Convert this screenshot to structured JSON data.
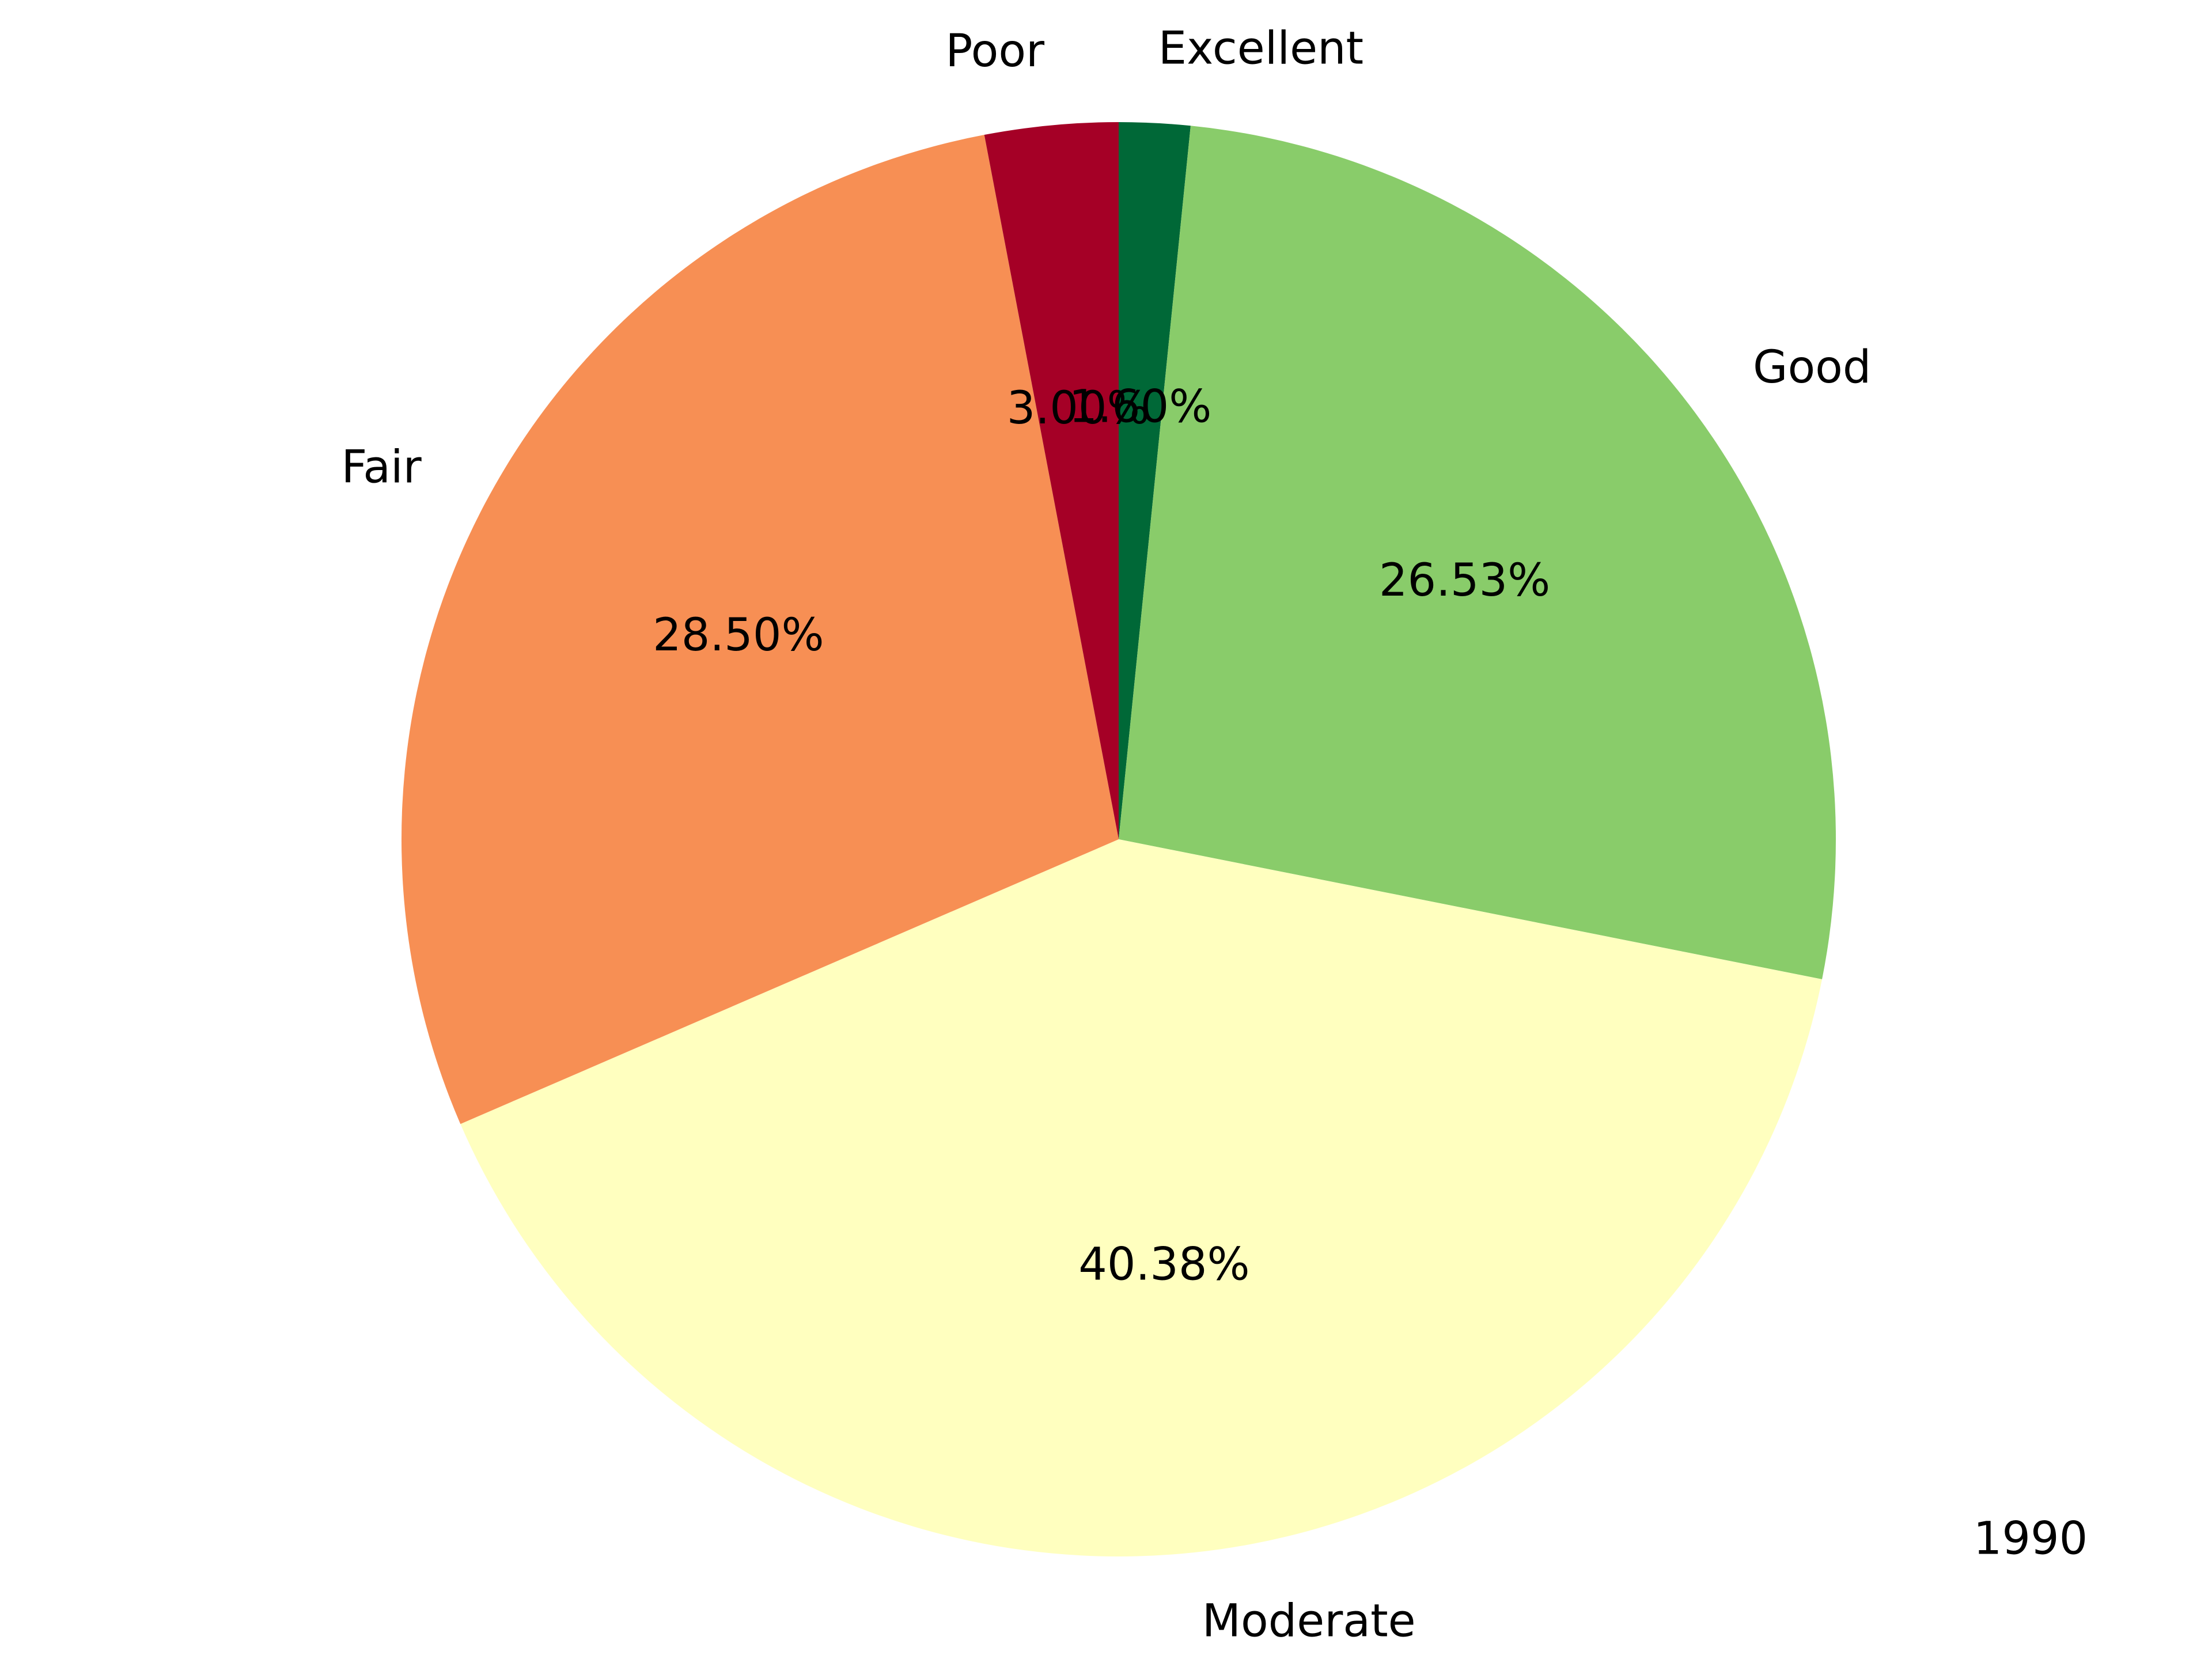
{
  "chart_data": {
    "type": "pie",
    "categories": [
      "Excellent",
      "Good",
      "Moderate",
      "Fair",
      "Poor"
    ],
    "values": [
      1.6,
      26.53,
      40.38,
      28.5,
      3.0
    ],
    "percent_labels": [
      "1.60%",
      "26.53%",
      "40.38%",
      "28.50%",
      "3.00%"
    ],
    "colors": [
      "#006837",
      "#89cc6a",
      "#ffffbf",
      "#f78f54",
      "#a50026"
    ],
    "start_angle_deg": 90,
    "direction": "clockwise",
    "annotation": "1990",
    "legend": "none",
    "grid": false
  }
}
